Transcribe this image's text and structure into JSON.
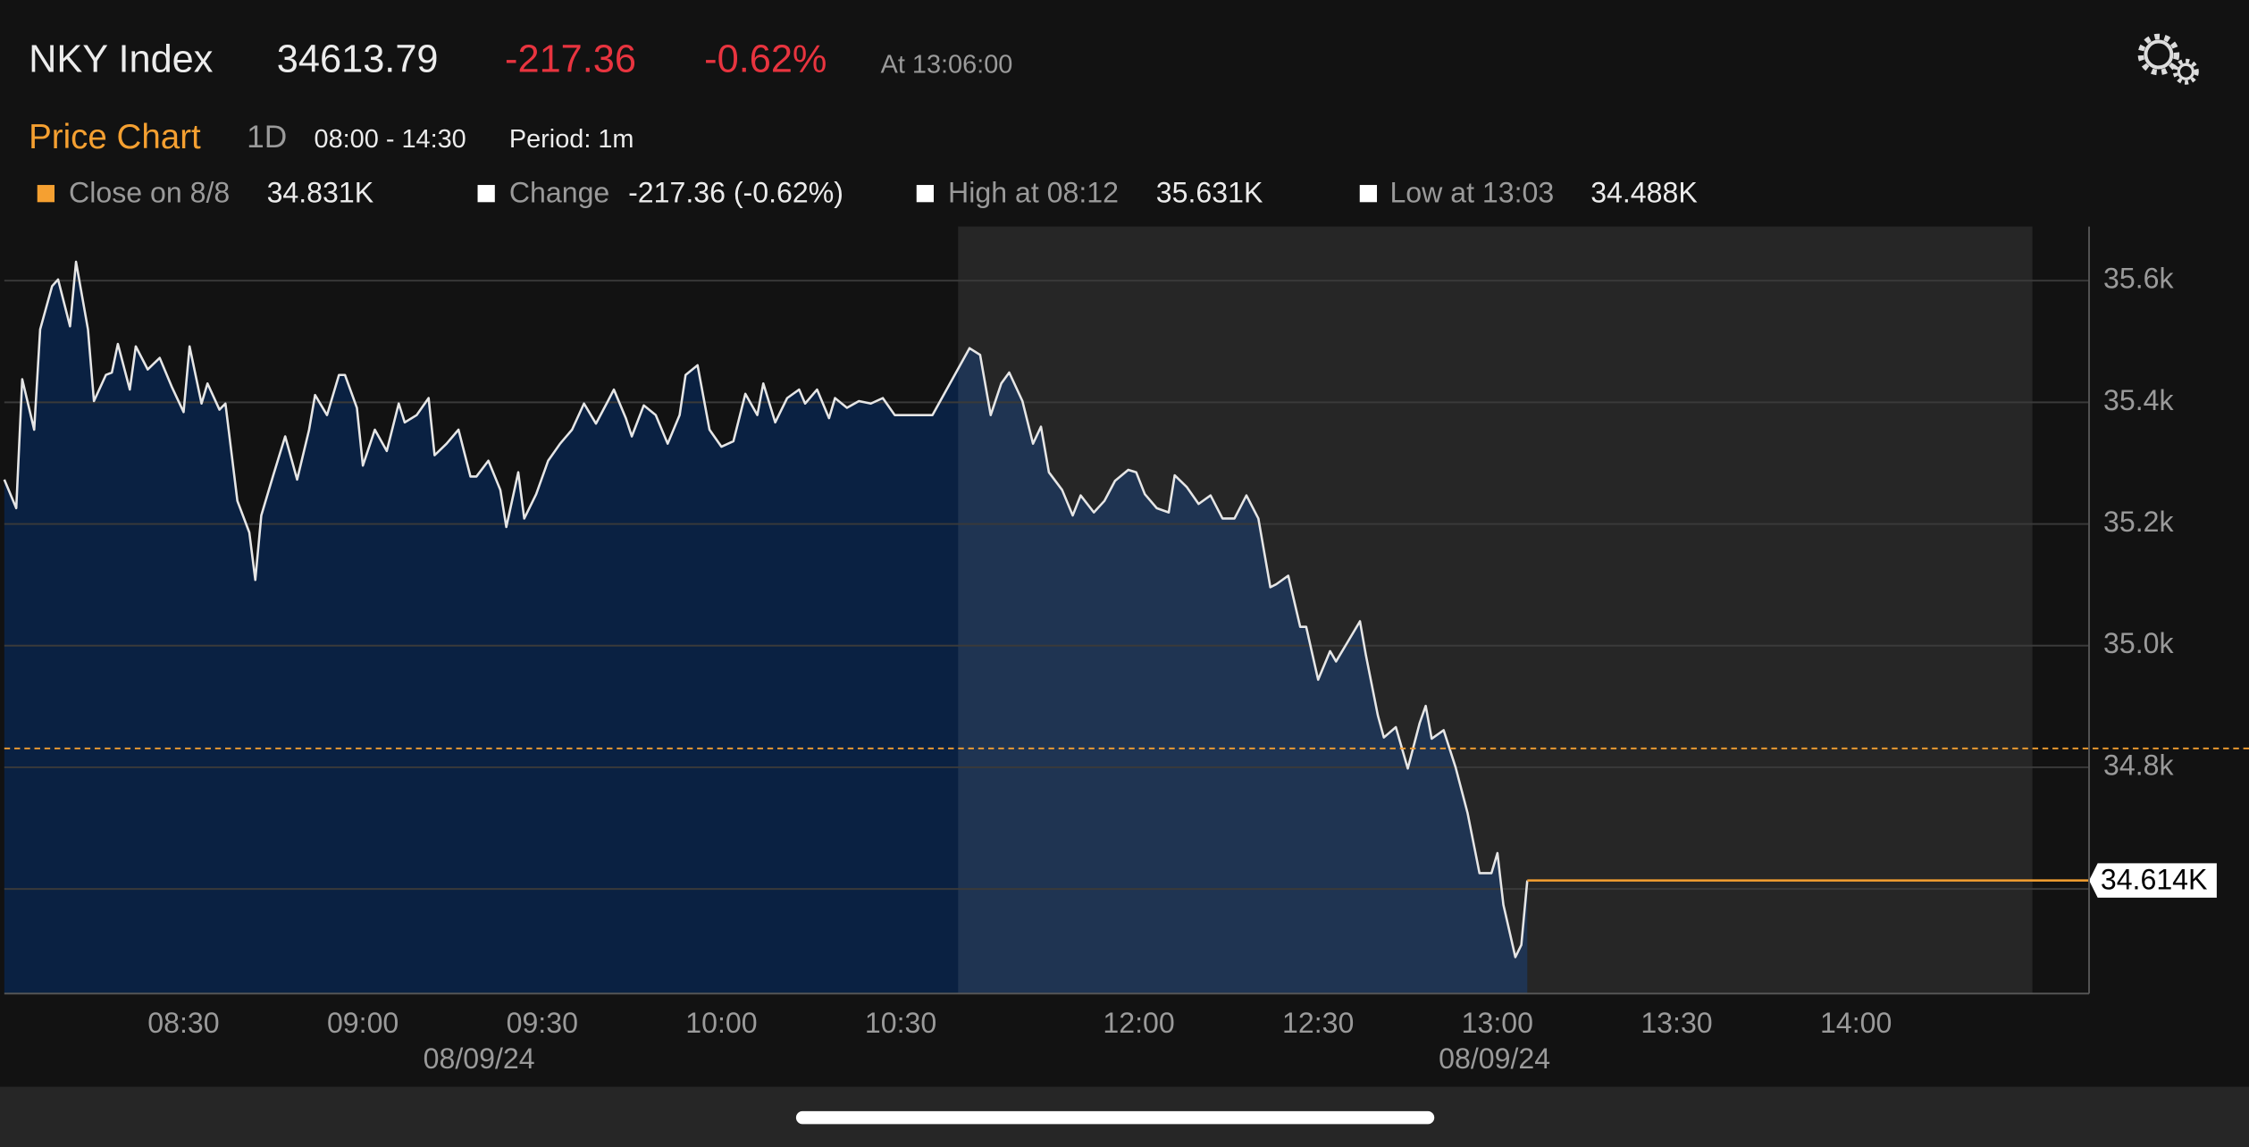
{
  "header": {
    "symbol": "NKY Index",
    "price": "34613.79",
    "change": "-217.36",
    "change_pct": "-0.62%",
    "time": "At 13:06:00"
  },
  "subheader": {
    "title": "Price Chart",
    "range": "1D",
    "hours": "08:00 - 14:30",
    "period": "Period: 1m"
  },
  "legend": [
    {
      "label": "Close on 8/8",
      "value": "34.831K"
    },
    {
      "label": "Change",
      "value": "-217.36 (-0.62%)"
    },
    {
      "label": "High at 08:12",
      "value": "35.631K"
    },
    {
      "label": "Low at 13:03",
      "value": "34.488K"
    }
  ],
  "chart_data": {
    "type": "area",
    "x": [
      "08:00",
      "08:02",
      "08:03",
      "08:05",
      "08:06",
      "08:08",
      "08:09",
      "08:11",
      "08:12",
      "08:14",
      "08:15",
      "08:17",
      "08:18",
      "08:19",
      "08:21",
      "08:22",
      "08:24",
      "08:26",
      "08:28",
      "08:30",
      "08:31",
      "08:33",
      "08:34",
      "08:36",
      "08:37",
      "08:39",
      "08:41",
      "08:42",
      "08:43",
      "08:45",
      "08:47",
      "08:49",
      "08:51",
      "08:52",
      "08:54",
      "08:56",
      "08:57",
      "08:59",
      "09:00",
      "09:02",
      "09:04",
      "09:06",
      "09:07",
      "09:09",
      "09:11",
      "09:12",
      "09:14",
      "09:16",
      "09:18",
      "09:19",
      "09:21",
      "09:23",
      "09:24",
      "09:26",
      "09:27",
      "09:29",
      "09:31",
      "09:33",
      "09:35",
      "09:37",
      "09:39",
      "09:41",
      "09:42",
      "09:44",
      "09:45",
      "09:47",
      "09:49",
      "09:51",
      "09:53",
      "09:54",
      "09:56",
      "09:58",
      "10:00",
      "10:02",
      "10:04",
      "10:06",
      "10:07",
      "10:09",
      "10:11",
      "10:13",
      "10:14",
      "10:16",
      "10:18",
      "10:19",
      "10:21",
      "10:23",
      "10:25",
      "10:27",
      "10:29",
      "10:42",
      "10:56",
      "11:00",
      "11:04",
      "11:08",
      "11:11",
      "11:16",
      "11:20",
      "11:23",
      "11:26",
      "11:31",
      "11:35",
      "11:38",
      "11:43",
      "11:47",
      "11:51",
      "11:56",
      "11:59",
      "12:01",
      "12:03",
      "12:05",
      "12:06",
      "12:08",
      "12:10",
      "12:12",
      "12:14",
      "12:16",
      "12:18",
      "12:20",
      "12:22",
      "12:23",
      "12:25",
      "12:27",
      "12:28",
      "12:30",
      "12:32",
      "12:33",
      "12:35",
      "12:37",
      "12:38",
      "12:40",
      "12:41",
      "12:43",
      "12:45",
      "12:47",
      "12:48",
      "12:49",
      "12:51",
      "12:53",
      "12:55",
      "12:57",
      "12:59",
      "13:00",
      "13:01",
      "13:03",
      "13:04",
      "13:05"
    ],
    "values": [
      35273,
      35226,
      35438,
      35355,
      35520,
      35591,
      35602,
      35525,
      35631,
      35520,
      35402,
      35445,
      35449,
      35496,
      35421,
      35492,
      35454,
      35473,
      35426,
      35384,
      35492,
      35398,
      35431,
      35388,
      35398,
      35238,
      35186,
      35108,
      35214,
      35280,
      35344,
      35273,
      35355,
      35412,
      35379,
      35445,
      35445,
      35391,
      35296,
      35355,
      35320,
      35398,
      35367,
      35379,
      35407,
      35313,
      35332,
      35355,
      35278,
      35278,
      35304,
      35256,
      35195,
      35285,
      35209,
      35249,
      35304,
      35332,
      35355,
      35398,
      35365,
      35402,
      35421,
      35374,
      35344,
      35395,
      35379,
      35332,
      35379,
      35445,
      35461,
      35355,
      35327,
      35336,
      35414,
      35379,
      35431,
      35367,
      35407,
      35421,
      35398,
      35421,
      35374,
      35407,
      35391,
      35402,
      35398,
      35407,
      35379,
      35379,
      35489,
      35478,
      35379,
      35431,
      35449,
      35402,
      35332,
      35360,
      35285,
      35256,
      35214,
      35247,
      35219,
      35238,
      35271,
      35289,
      35285,
      35249,
      35226,
      35219,
      35280,
      35261,
      35233,
      35247,
      35209,
      35209,
      35247,
      35209,
      35096,
      35101,
      35115,
      35031,
      35031,
      34944,
      34991,
      34974,
      35007,
      35040,
      34984,
      34885,
      34849,
      34866,
      34798,
      34873,
      34901,
      34847,
      34861,
      34800,
      34725,
      34626,
      34626,
      34659,
      34574,
      34488,
      34508,
      34614
    ],
    "color": "#e6e6e6",
    "area_color": "#0a2142",
    "reference_line": 34831,
    "reference_color": "#f5a031",
    "last_value_label": "34.614K",
    "xlim": [
      "08:00",
      "14:39"
    ],
    "xticks": [
      "08:30",
      "09:00",
      "09:30",
      "10:00",
      "10:30",
      "12:00",
      "12:30",
      "13:00",
      "13:30",
      "14:00"
    ],
    "date_labels": [
      "08/09/24",
      "08/09/24"
    ],
    "ylim": [
      34428,
      35689
    ],
    "yticks": [
      {
        "value": 35600,
        "label": "35.6k"
      },
      {
        "value": 35400,
        "label": "35.4k"
      },
      {
        "value": 35200,
        "label": "35.2k"
      },
      {
        "value": 35000,
        "label": "35.0k"
      },
      {
        "value": 34800,
        "label": "34.8k"
      },
      {
        "value": 34600,
        "label": null
      }
    ],
    "grid": true
  }
}
